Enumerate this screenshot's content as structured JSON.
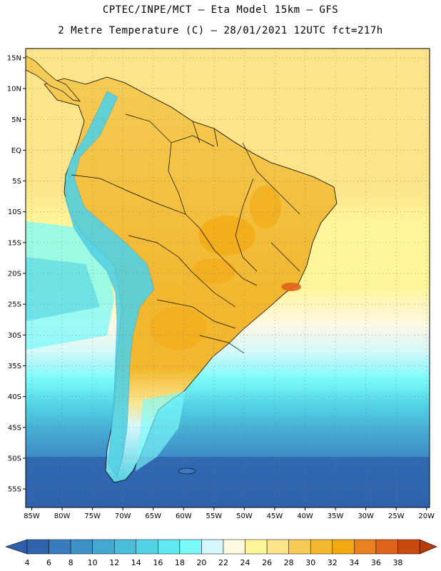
{
  "header": {
    "line1": "CPTEC/INPE/MCT  –  Eta Model 15km  –  GFS",
    "line2": "2 Metre Temperature (C) – 28/01/2021 12UTC fct=217h"
  },
  "map": {
    "lon_range": [
      -86,
      -19.5
    ],
    "lat_range": [
      -58,
      16.5
    ],
    "lat_ticks": [
      {
        "value": 15,
        "label": "15N"
      },
      {
        "value": 10,
        "label": "10N"
      },
      {
        "value": 5,
        "label": "5N"
      },
      {
        "value": 0,
        "label": "EQ"
      },
      {
        "value": -5,
        "label": "5S"
      },
      {
        "value": -10,
        "label": "10S"
      },
      {
        "value": -15,
        "label": "15S"
      },
      {
        "value": -20,
        "label": "20S"
      },
      {
        "value": -25,
        "label": "25S"
      },
      {
        "value": -30,
        "label": "30S"
      },
      {
        "value": -35,
        "label": "35S"
      },
      {
        "value": -40,
        "label": "40S"
      },
      {
        "value": -45,
        "label": "45S"
      },
      {
        "value": -50,
        "label": "50S"
      },
      {
        "value": -55,
        "label": "55S"
      }
    ],
    "lon_ticks": [
      {
        "value": -85,
        "label": "85W"
      },
      {
        "value": -80,
        "label": "80W"
      },
      {
        "value": -75,
        "label": "75W"
      },
      {
        "value": -70,
        "label": "70W"
      },
      {
        "value": -65,
        "label": "65W"
      },
      {
        "value": -60,
        "label": "60W"
      },
      {
        "value": -55,
        "label": "55W"
      },
      {
        "value": -50,
        "label": "50W"
      },
      {
        "value": -45,
        "label": "45W"
      },
      {
        "value": -40,
        "label": "40W"
      },
      {
        "value": -35,
        "label": "35W"
      },
      {
        "value": -30,
        "label": "30W"
      },
      {
        "value": -25,
        "label": "25W"
      },
      {
        "value": -20,
        "label": "20W"
      }
    ]
  },
  "colorbar": {
    "labels": [
      "4",
      "6",
      "8",
      "10",
      "12",
      "14",
      "16",
      "18",
      "20",
      "22",
      "24",
      "26",
      "28",
      "30",
      "32",
      "34",
      "36",
      "38"
    ],
    "low_color": "#2e5fa8",
    "high_color": "#b83a08",
    "colors": [
      "#2f64ad",
      "#3a7bc0",
      "#3f92c8",
      "#45a7d2",
      "#4bbddb",
      "#52d2e4",
      "#60e9f0",
      "#7bfafa",
      "#d4f8fb",
      "#fff8e2",
      "#fff59a",
      "#fbe48a",
      "#f5cb55",
      "#f2b72e",
      "#f2a810",
      "#e8821e",
      "#e0631a",
      "#c94a0d"
    ]
  }
}
